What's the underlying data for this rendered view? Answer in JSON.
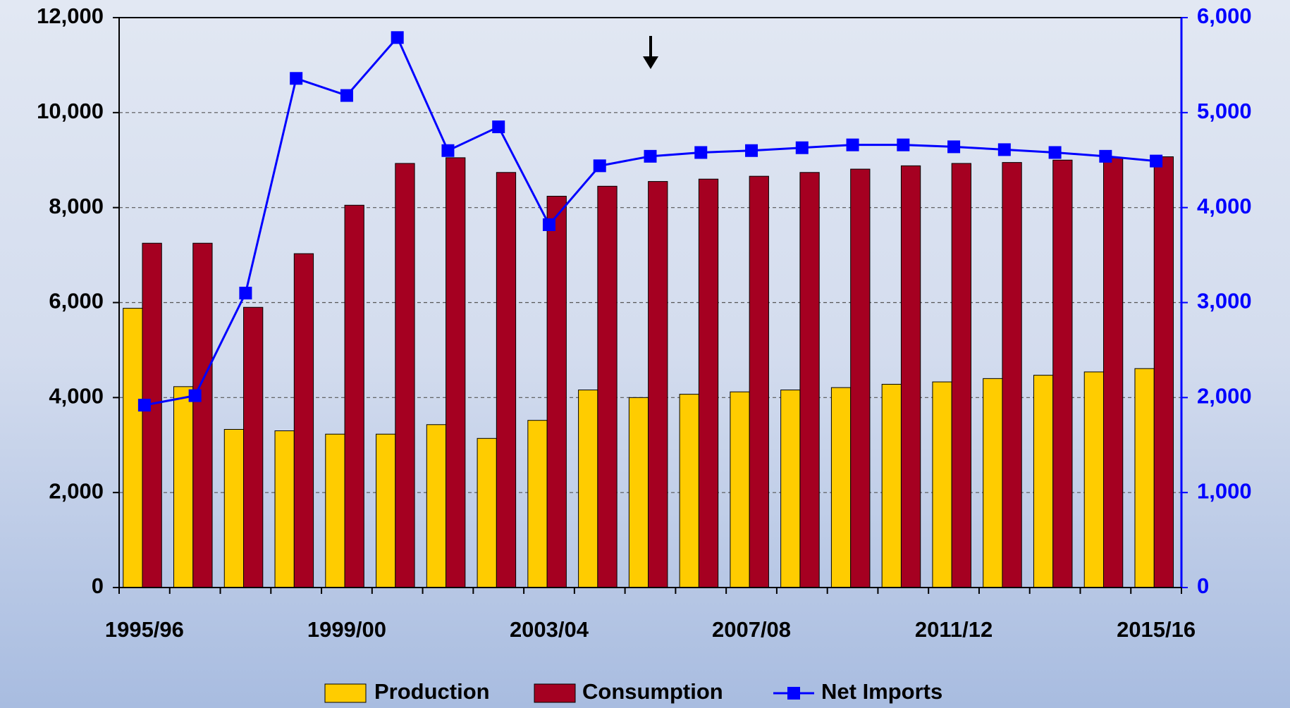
{
  "chart_data": {
    "type": "bar",
    "categories": [
      "1995/96",
      null,
      null,
      null,
      "1999/00",
      null,
      null,
      null,
      "2003/04",
      null,
      null,
      null,
      "2007/08",
      null,
      null,
      null,
      "2011/12",
      null,
      null,
      null,
      "2015/16"
    ],
    "series": [
      {
        "name": "Production",
        "color": "#ffcc00",
        "type": "bar",
        "values": [
          5880,
          4230,
          3330,
          3300,
          3230,
          3230,
          3430,
          3140,
          3520,
          4160,
          4000,
          4070,
          4120,
          4160,
          4210,
          4280,
          4330,
          4400,
          4470,
          4540,
          4610
        ]
      },
      {
        "name": "Consumption",
        "color": "#a50021",
        "type": "bar",
        "values": [
          7250,
          7250,
          5900,
          7030,
          8050,
          8930,
          9050,
          8740,
          8240,
          8450,
          8550,
          8600,
          8660,
          8740,
          8810,
          8880,
          8930,
          8950,
          9000,
          9050,
          9070
        ]
      },
      {
        "name": "Net Imports",
        "color": "#0000ff",
        "type": "line",
        "axis": "y2",
        "values": [
          1920,
          2020,
          3100,
          5360,
          5180,
          5790,
          4600,
          4850,
          3820,
          4440,
          4540,
          4580,
          4600,
          4630,
          4660,
          4660,
          4640,
          4610,
          4580,
          4540,
          4490
        ]
      }
    ],
    "ylim": [
      0,
      12000
    ],
    "yticks": [
      0,
      {
        "value": 2000,
        "label": "2,000"
      },
      {
        "value": 4000,
        "label": "4,000"
      },
      {
        "value": 6000,
        "label": "6,000"
      },
      {
        "value": 8000,
        "label": "8,000"
      },
      {
        "value": 10000,
        "label": "10,000"
      },
      {
        "value": 12000,
        "label": "12,000"
      }
    ],
    "y2lim": [
      0,
      6000
    ],
    "y2ticks": [
      0,
      {
        "value": 1000,
        "label": "1,000"
      },
      {
        "value": 2000,
        "label": "2,000"
      },
      {
        "value": 3000,
        "label": "3,000"
      },
      {
        "value": 4000,
        "label": "4,000"
      },
      {
        "value": 5000,
        "label": "5,000"
      },
      {
        "value": 6000,
        "label": "6,000"
      }
    ],
    "grid": true,
    "legend": "bottom"
  }
}
